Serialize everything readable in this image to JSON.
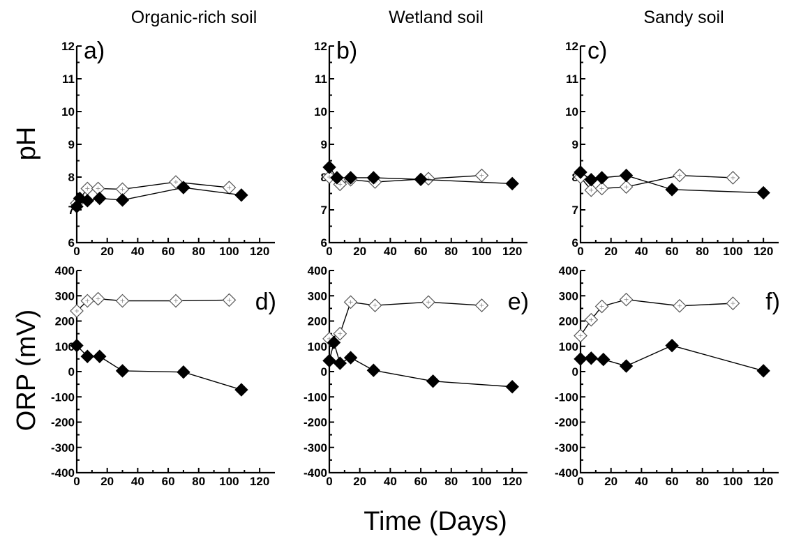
{
  "figure": {
    "column_titles": [
      "Organic-rich soil",
      "Wetland soil",
      "Sandy soil"
    ],
    "row_ylabels": [
      "pH",
      "ORP (mV)"
    ],
    "xlabel": "Time (Days)"
  },
  "chart_data": [
    {
      "type": "line",
      "panel": "a)",
      "column": 0,
      "row": 0,
      "title": "Organic-rich soil",
      "ylabel": "pH",
      "xlabel": "",
      "xlim": [
        0,
        130
      ],
      "ylim": [
        6,
        12
      ],
      "xticks": [
        0,
        20,
        40,
        60,
        80,
        100,
        120
      ],
      "yticks": [
        6,
        7,
        8,
        9,
        10,
        11,
        12
      ],
      "series": [
        {
          "marker": "open-diamond",
          "x": [
            0,
            7,
            14,
            30,
            65,
            100
          ],
          "y": [
            7.2,
            7.65,
            7.65,
            7.63,
            7.85,
            7.68
          ]
        },
        {
          "marker": "filled-diamond",
          "x": [
            0,
            2,
            7,
            15,
            30,
            70,
            108
          ],
          "y": [
            7.1,
            7.35,
            7.28,
            7.35,
            7.3,
            7.68,
            7.45
          ]
        }
      ]
    },
    {
      "type": "line",
      "panel": "b)",
      "column": 1,
      "row": 0,
      "title": "Wetland soil",
      "ylabel": "",
      "xlabel": "",
      "xlim": [
        0,
        130
      ],
      "ylim": [
        6,
        12
      ],
      "xticks": [
        0,
        20,
        40,
        60,
        80,
        100,
        120
      ],
      "yticks": [
        6,
        7,
        8,
        9,
        10,
        11,
        12
      ],
      "series": [
        {
          "marker": "open-diamond",
          "x": [
            0,
            7,
            14,
            30,
            65,
            100
          ],
          "y": [
            8.0,
            7.78,
            7.92,
            7.85,
            7.95,
            8.05
          ]
        },
        {
          "marker": "filled-diamond",
          "x": [
            0,
            5,
            14,
            29,
            60,
            120
          ],
          "y": [
            8.3,
            7.98,
            7.98,
            7.98,
            7.93,
            7.8
          ]
        }
      ]
    },
    {
      "type": "line",
      "panel": "c)",
      "column": 2,
      "row": 0,
      "title": "Sandy soil",
      "ylabel": "",
      "xlabel": "",
      "xlim": [
        0,
        130
      ],
      "ylim": [
        6,
        12
      ],
      "xticks": [
        0,
        20,
        40,
        60,
        80,
        100,
        120
      ],
      "yticks": [
        6,
        7,
        8,
        9,
        10,
        11,
        12
      ],
      "series": [
        {
          "marker": "open-diamond",
          "x": [
            0,
            7,
            14,
            30,
            65,
            100
          ],
          "y": [
            8.0,
            7.6,
            7.65,
            7.7,
            8.05,
            7.98
          ]
        },
        {
          "marker": "filled-diamond",
          "x": [
            0,
            7,
            14,
            30,
            60,
            120
          ],
          "y": [
            8.15,
            7.92,
            7.98,
            8.05,
            7.62,
            7.52
          ]
        }
      ]
    },
    {
      "type": "line",
      "panel": "d)",
      "column": 0,
      "row": 1,
      "title": "",
      "ylabel": "ORP (mV)",
      "xlabel": "",
      "xlim": [
        0,
        130
      ],
      "ylim": [
        -400,
        400
      ],
      "xticks": [
        0,
        20,
        40,
        60,
        80,
        100,
        120
      ],
      "yticks": [
        -400,
        -300,
        -200,
        -100,
        0,
        100,
        200,
        300,
        400
      ],
      "series": [
        {
          "marker": "open-diamond",
          "x": [
            0,
            7,
            14,
            30,
            65,
            100
          ],
          "y": [
            240,
            280,
            288,
            280,
            280,
            283
          ]
        },
        {
          "marker": "filled-diamond",
          "x": [
            0,
            7,
            15,
            30,
            70,
            108
          ],
          "y": [
            103,
            60,
            60,
            3,
            -2,
            -72
          ]
        }
      ]
    },
    {
      "type": "line",
      "panel": "e)",
      "column": 1,
      "row": 1,
      "title": "",
      "ylabel": "",
      "xlabel": "",
      "xlim": [
        0,
        130
      ],
      "ylim": [
        -400,
        400
      ],
      "xticks": [
        0,
        20,
        40,
        60,
        80,
        100,
        120
      ],
      "yticks": [
        -400,
        -300,
        -200,
        -100,
        0,
        100,
        200,
        300,
        400
      ],
      "series": [
        {
          "marker": "open-diamond",
          "x": [
            0,
            7,
            14,
            30,
            65,
            100
          ],
          "y": [
            130,
            150,
            275,
            262,
            275,
            262
          ]
        },
        {
          "marker": "filled-diamond",
          "x": [
            0,
            3,
            7,
            14,
            29,
            68,
            120
          ],
          "y": [
            43,
            115,
            33,
            55,
            5,
            -38,
            -60
          ]
        }
      ]
    },
    {
      "type": "line",
      "panel": "f)",
      "column": 2,
      "row": 1,
      "title": "",
      "ylabel": "",
      "xlabel": "",
      "xlim": [
        0,
        130
      ],
      "ylim": [
        -400,
        400
      ],
      "xticks": [
        0,
        20,
        40,
        60,
        80,
        100,
        120
      ],
      "yticks": [
        -400,
        -300,
        -200,
        -100,
        0,
        100,
        200,
        300,
        400
      ],
      "series": [
        {
          "marker": "open-diamond",
          "x": [
            0,
            7,
            14,
            30,
            65,
            100
          ],
          "y": [
            142,
            205,
            258,
            285,
            260,
            270
          ]
        },
        {
          "marker": "filled-diamond",
          "x": [
            0,
            7,
            15,
            30,
            60,
            120
          ],
          "y": [
            50,
            53,
            48,
            22,
            103,
            3
          ]
        }
      ]
    }
  ]
}
